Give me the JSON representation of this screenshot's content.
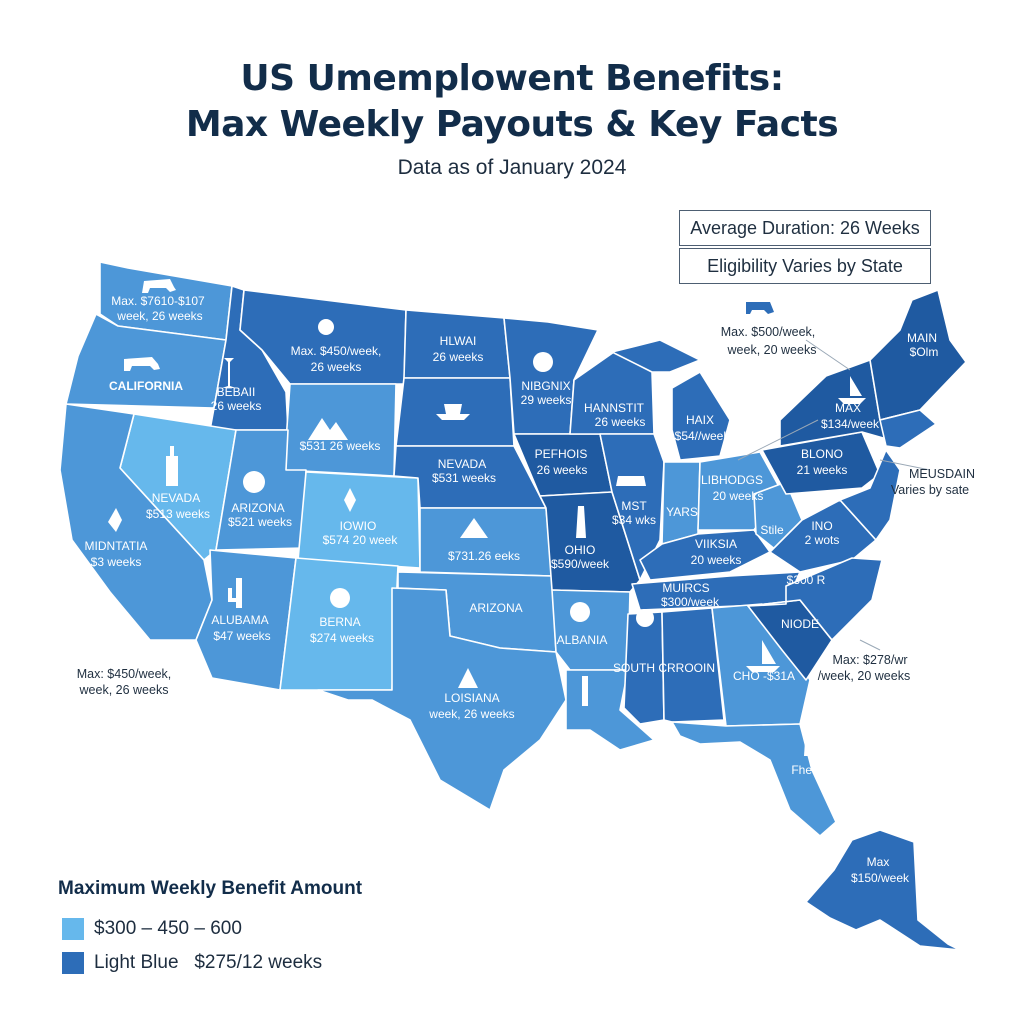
{
  "header": {
    "title_line1": "US Umemplowent Benefits:",
    "title_line2": "Max Weekly Payouts & Key Facts",
    "subtitle": "Data as of January 2024"
  },
  "info_boxes": [
    "Average Duration: 26 Weeks",
    "Eligibility Varies by State"
  ],
  "colors": {
    "light": "#66b8ec",
    "mid": "#4d97d8",
    "dark": "#2d6db8",
    "darkest": "#1f5aa1",
    "border": "#ffffff",
    "callout_line": "#9aa8b6"
  },
  "map_labels": {
    "wa": [
      "Max. $7610-$107",
      "week, 26 weeks"
    ],
    "mt": [
      "Max. $450/week,",
      "26 weeks"
    ],
    "nd": [
      "HLWAI",
      "26 weeks"
    ],
    "mn": [
      "NIBGNIX",
      "29 weeks"
    ],
    "or": [
      "CALIFORNIA"
    ],
    "id": [
      "BEBAII",
      "26 weeks"
    ],
    "wy": [
      "$531 26 weeks"
    ],
    "sd": [
      "NEVADA",
      "$531 weeks"
    ],
    "wi": [
      "HANNSTIT",
      "26 weeks"
    ],
    "mi": [
      "HAIX",
      "$54//week"
    ],
    "nv": [
      "NEVADA",
      "$513 weeks"
    ],
    "ut": [
      "ARIZONA",
      "$521 weeks"
    ],
    "co": [
      "IOWIO",
      "$574 20 week"
    ],
    "ne": [
      "$731.26 eeks"
    ],
    "ia": [
      "PEFHOIS",
      "26 weeks"
    ],
    "il": [
      "MST",
      "$34 wks"
    ],
    "in": [
      "YARS"
    ],
    "oh": [
      "LIBHODGS",
      "20 weeks"
    ],
    "ca": [
      "MIDNTATIA",
      "$3 weeks"
    ],
    "az": [
      "ALUBAMA",
      "$47 weeks"
    ],
    "nm": [
      "BERNA",
      "$274 weeks"
    ],
    "ks": [
      "ARIZONA"
    ],
    "mo": [
      "OHIO",
      "$590/week"
    ],
    "ky": [
      "VIIKSIA",
      "20 weeks"
    ],
    "tn": [
      "MUIRCS",
      "$300/week"
    ],
    "wv": [
      "Stile"
    ],
    "va": [
      "INO",
      "2 wots"
    ],
    "nc": [
      "$300 R"
    ],
    "sc": [
      "NIODE"
    ],
    "ar": [
      "ALBANIA"
    ],
    "ms_al": [
      "SOUTH CRROOIN"
    ],
    "ga": [
      "CHO -$31A"
    ],
    "fl": [
      "Fhealt"
    ],
    "tx": [
      "LOISIANA",
      "week, 26 weeks"
    ],
    "pa": [
      "BLONO",
      "21 weeks"
    ],
    "ny": [
      "MAX",
      "$134/week"
    ],
    "me": [
      "MAIN",
      "$Olm"
    ],
    "ak": [
      "Max",
      "$150/week"
    ]
  },
  "callouts": {
    "northeast": [
      "Max. $500/week,",
      "week, 20 weeks"
    ],
    "mid_atlantic": [
      "MEUSDAIN",
      "Varies by sate"
    ],
    "southeast": [
      "Max: $278/wr",
      "/week, 20 weeks"
    ],
    "southwest": [
      "Max: $450/week,",
      "week, 26 weeks"
    ]
  },
  "legend": {
    "title": "Maximum Weekly Benefit Amount",
    "items": [
      {
        "label": "$300 – 450 – 600",
        "color": "#66b8ec"
      },
      {
        "label": "Light Blue   $275/12 weeks",
        "color": "#2d6db8"
      }
    ]
  }
}
